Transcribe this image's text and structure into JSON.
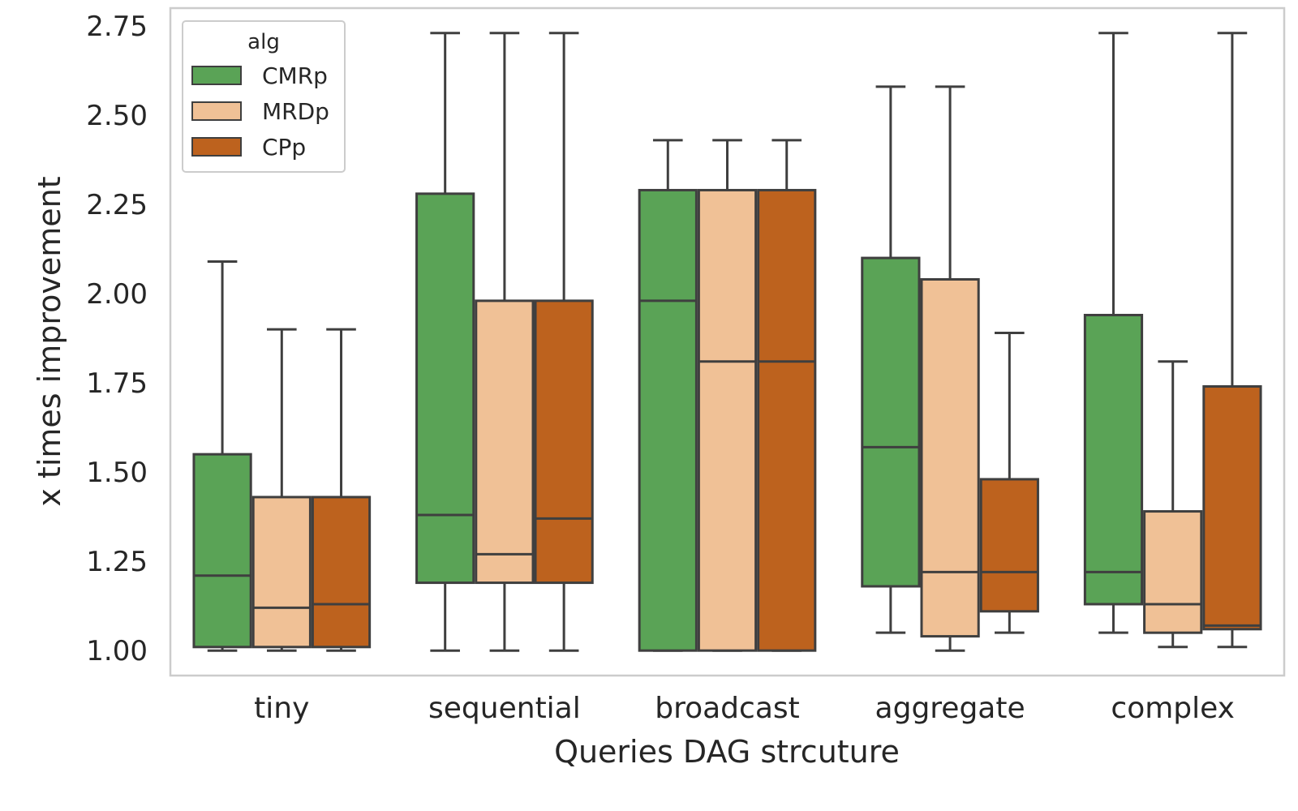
{
  "chart_data": {
    "type": "box",
    "title": "",
    "xlabel": "Queries DAG strcuture",
    "ylabel": "x times improvement",
    "ylim": [
      0.93,
      2.8
    ],
    "yticks": [
      1.0,
      1.25,
      1.5,
      1.75,
      2.0,
      2.25,
      2.5,
      2.75
    ],
    "ytick_labels": [
      "1.00",
      "1.25",
      "1.50",
      "1.75",
      "2.00",
      "2.25",
      "2.50",
      "2.75"
    ],
    "grid": false,
    "legend": {
      "title": "alg",
      "placement": "top-left"
    },
    "categories": [
      "tiny",
      "sequential",
      "broadcast",
      "aggregate",
      "complex"
    ],
    "series": [
      {
        "name": "CMRp",
        "color": "#5aa356",
        "boxes": [
          {
            "min": 1.0,
            "q1": 1.01,
            "median": 1.21,
            "q3": 1.55,
            "max": 2.09
          },
          {
            "min": 1.0,
            "q1": 1.19,
            "median": 1.38,
            "q3": 2.28,
            "max": 2.73
          },
          {
            "min": 1.0,
            "q1": 1.0,
            "median": 1.98,
            "q3": 2.29,
            "max": 2.43
          },
          {
            "min": 1.05,
            "q1": 1.18,
            "median": 1.57,
            "q3": 2.1,
            "max": 2.58
          },
          {
            "min": 1.05,
            "q1": 1.13,
            "median": 1.22,
            "q3": 1.94,
            "max": 2.73
          }
        ]
      },
      {
        "name": "MRDp",
        "color": "#f0c196",
        "boxes": [
          {
            "min": 1.0,
            "q1": 1.01,
            "median": 1.12,
            "q3": 1.43,
            "max": 1.9
          },
          {
            "min": 1.0,
            "q1": 1.19,
            "median": 1.27,
            "q3": 1.98,
            "max": 2.73
          },
          {
            "min": 1.0,
            "q1": 1.0,
            "median": 1.81,
            "q3": 2.29,
            "max": 2.43
          },
          {
            "min": 1.0,
            "q1": 1.04,
            "median": 1.22,
            "q3": 2.04,
            "max": 2.58
          },
          {
            "min": 1.01,
            "q1": 1.05,
            "median": 1.13,
            "q3": 1.39,
            "max": 1.81
          }
        ]
      },
      {
        "name": "CPp",
        "color": "#bd621e",
        "boxes": [
          {
            "min": 1.0,
            "q1": 1.01,
            "median": 1.13,
            "q3": 1.43,
            "max": 1.9
          },
          {
            "min": 1.0,
            "q1": 1.19,
            "median": 1.37,
            "q3": 1.98,
            "max": 2.73
          },
          {
            "min": 1.0,
            "q1": 1.0,
            "median": 1.81,
            "q3": 2.29,
            "max": 2.43
          },
          {
            "min": 1.05,
            "q1": 1.11,
            "median": 1.22,
            "q3": 1.48,
            "max": 1.89
          },
          {
            "min": 1.01,
            "q1": 1.06,
            "median": 1.07,
            "q3": 1.74,
            "max": 2.73
          }
        ]
      }
    ]
  }
}
